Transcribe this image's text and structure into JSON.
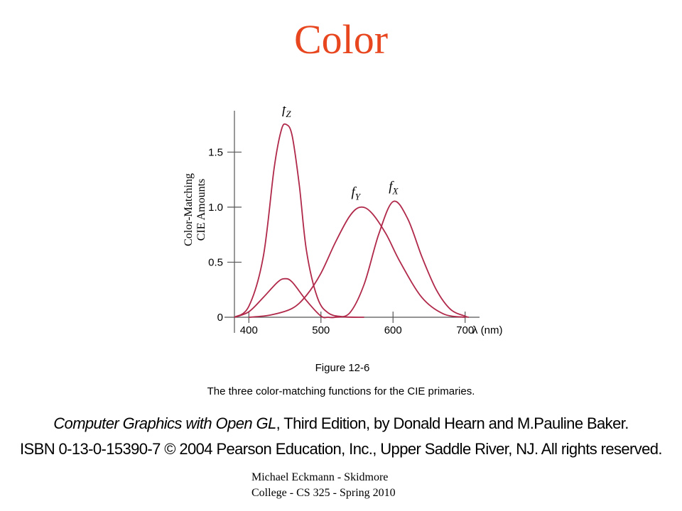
{
  "slide": {
    "title": "Color"
  },
  "figure": {
    "number": "Figure 12-6",
    "caption": "The three color-matching functions for the CIE primaries."
  },
  "credit": {
    "book_title": "Computer Graphics with Open GL",
    "book_rest": ", Third Edition, by Donald Hearn and M.Pauline Baker.",
    "isbn_line": "ISBN 0-13-0-15390-7 © 2004 Pearson Education, Inc., Upper Saddle River, NJ. All rights reserved."
  },
  "footer": {
    "line1": "Michael Eckmann - Skidmore",
    "line2": "College - CS 325 - Spring 2010"
  },
  "chart_data": {
    "type": "line",
    "title": "",
    "xlabel": "λ (nm)",
    "ylabel_line1": "Color-Matching",
    "ylabel_line2": "CIE Amounts",
    "xlim": [
      380,
      720
    ],
    "ylim": [
      0,
      1.85
    ],
    "x_ticks": [
      400,
      500,
      600,
      700
    ],
    "y_ticks": [
      {
        "value": 0,
        "label": "0"
      },
      {
        "value": 0.5,
        "label": "0.5"
      },
      {
        "value": 1.0,
        "label": "1.0"
      },
      {
        "value": 1.5,
        "label": "1.5"
      }
    ],
    "line_color": "#b0294a",
    "series": [
      {
        "label_main": "f",
        "label_sub": "Z",
        "label_at": [
          452,
          1.85
        ],
        "x": [
          380,
          400,
          420,
          435,
          445,
          452,
          460,
          470,
          480,
          495,
          510,
          530,
          560
        ],
        "y": [
          0.0,
          0.1,
          0.55,
          1.35,
          1.7,
          1.75,
          1.65,
          1.2,
          0.6,
          0.18,
          0.04,
          0.005,
          0.0
        ]
      },
      {
        "label_main": "f",
        "label_sub": "Y",
        "label_at": [
          548,
          1.1
        ],
        "x": [
          400,
          430,
          460,
          480,
          500,
          520,
          540,
          555,
          570,
          590,
          610,
          640,
          670,
          700
        ],
        "y": [
          0.0,
          0.02,
          0.08,
          0.2,
          0.4,
          0.68,
          0.92,
          1.0,
          0.95,
          0.76,
          0.5,
          0.18,
          0.03,
          0.0
        ]
      },
      {
        "label_main": "f",
        "label_sub": "X",
        "label_at": [
          600,
          1.15
        ],
        "x": [
          380,
          400,
          420,
          440,
          450,
          460,
          480,
          500,
          510,
          520,
          540,
          560,
          580,
          600,
          620,
          640,
          660,
          680,
          700,
          705
        ],
        "y": [
          0.0,
          0.05,
          0.18,
          0.32,
          0.35,
          0.32,
          0.15,
          0.01,
          0.0,
          0.0,
          0.04,
          0.3,
          0.75,
          1.05,
          0.9,
          0.55,
          0.25,
          0.07,
          0.01,
          0.0
        ]
      }
    ]
  }
}
